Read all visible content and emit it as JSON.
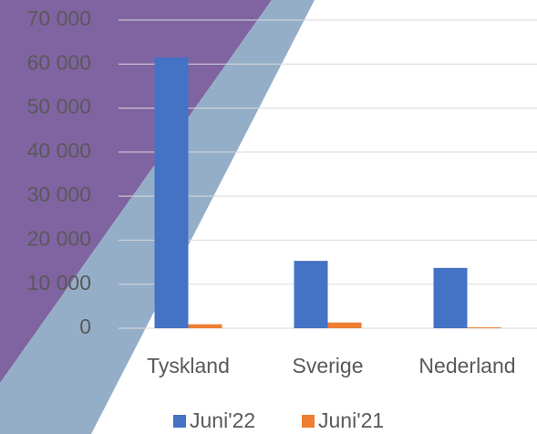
{
  "chart_data": {
    "type": "bar",
    "categories": [
      "Tyskland",
      "Sverige",
      "Nederland"
    ],
    "series": [
      {
        "name": "Juni'22",
        "color": "#4472c4",
        "values": [
          61500,
          15300,
          13700
        ]
      },
      {
        "name": "Juni'21",
        "color": "#ed7d31",
        "values": [
          900,
          1300,
          200
        ]
      }
    ],
    "ylim": [
      0,
      70000
    ],
    "yticks": [
      0,
      {
        "value": 10000,
        "label": "10 000"
      },
      {
        "value": 20000,
        "label": "20 000"
      },
      {
        "value": 30000,
        "label": "30 000"
      },
      {
        "value": 40000,
        "label": "40 000"
      },
      {
        "value": 50000,
        "label": "50 000"
      },
      {
        "value": 60000,
        "label": "60 000"
      },
      {
        "value": 70000,
        "label": "70 000"
      }
    ],
    "grid": true,
    "legend": "bottom"
  }
}
